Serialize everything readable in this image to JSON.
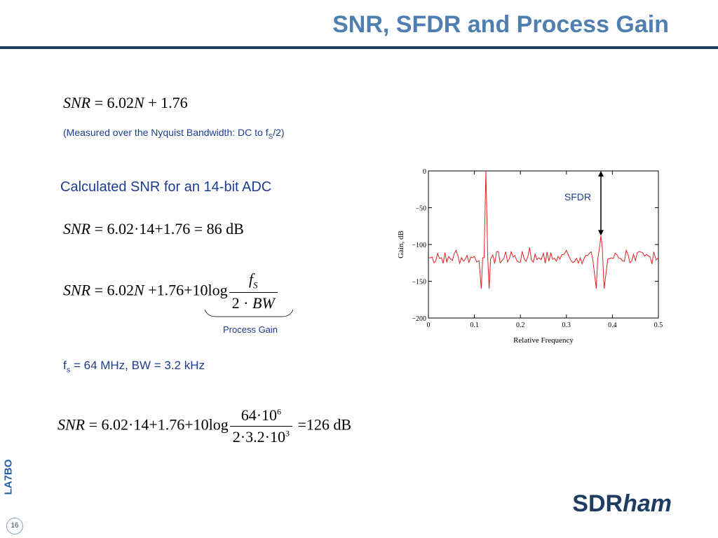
{
  "slide": {
    "title": "SNR, SFDR and Process Gain",
    "side_label": "LA7BO",
    "page_number": "16",
    "logo_main": "SDR",
    "logo_italic": "ham"
  },
  "formula1": {
    "snr": "SNR",
    "eq": " = 6.02",
    "n": "N",
    "rest": " + 1.76"
  },
  "measured_note": {
    "text": "(Measured over the Nyquist Bandwidth: DC to f",
    "sub": "S",
    "tail": "/2)"
  },
  "calc_heading": "Calculated SNR for an 14-bit ADC",
  "formula2": {
    "snr": "SNR",
    "rest": " = 6.02·14+1.76 = 86  dB"
  },
  "formula3": {
    "snr": "SNR",
    "eq": " = 6.02",
    "n": "N",
    "rest": " +1.76+10log",
    "num_f": "f",
    "num_sub": "S",
    "den": "2 · ",
    "den_italic": "BW"
  },
  "process_gain_label": "Process Gain",
  "fs_line": {
    "f": "f",
    "sub": "s",
    "rest": " = 64 MHz, BW = 3.2 kHz"
  },
  "formula4": {
    "snr": "SNR",
    "rest": " = 6.02·14+1.76+10log",
    "num": "64·10",
    "num_exp": "6",
    "den": "2·3.2·10",
    "den_exp": "3",
    "result": " =126   dB"
  },
  "chart_data": {
    "type": "line",
    "xlabel": "Relative Frequency",
    "ylabel": "Gain, dB",
    "xlim": [
      0,
      0.5
    ],
    "ylim": [
      -200,
      0
    ],
    "xticks": [
      0,
      0.1,
      0.2,
      0.3,
      0.4,
      0.5
    ],
    "xtick_labels": [
      "0",
      "0.1",
      "0.2",
      "0.3",
      "0.4",
      "0.5"
    ],
    "yticks": [
      0,
      -50,
      -100,
      -150,
      -200
    ],
    "ytick_labels": [
      "0",
      "−50",
      "−100",
      "−150",
      "−200"
    ],
    "annotation": "SFDR",
    "noise_floor_db": -118,
    "series": [
      {
        "color": "#e02020",
        "x": [
          0,
          0.02,
          0.04,
          0.06,
          0.08,
          0.1,
          0.11,
          0.115,
          0.118,
          0.121,
          0.125,
          0.129,
          0.132,
          0.135,
          0.14,
          0.16,
          0.18,
          0.2,
          0.22,
          0.24,
          0.25,
          0.27,
          0.29,
          0.3,
          0.31,
          0.33,
          0.35,
          0.365,
          0.368,
          0.372,
          0.375,
          0.378,
          0.382,
          0.39,
          0.41,
          0.43,
          0.45,
          0.47,
          0.49,
          0.5
        ],
        "y": [
          -118,
          -112,
          -124,
          -108,
          -120,
          -116,
          -122,
          -160,
          -118,
          -118,
          0,
          -118,
          -160,
          -120,
          -114,
          -122,
          -110,
          -124,
          -104,
          -118,
          -112,
          -120,
          -114,
          -108,
          -122,
          -118,
          -112,
          -160,
          -120,
          -105,
          -88,
          -105,
          -160,
          -120,
          -114,
          -108,
          -122,
          -116,
          -110,
          -118
        ]
      }
    ]
  }
}
